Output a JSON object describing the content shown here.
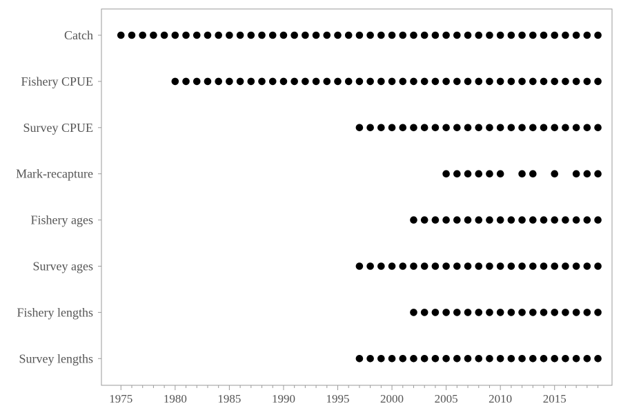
{
  "chart_data": {
    "type": "scatter",
    "title": "",
    "xlabel": "",
    "ylabel": "",
    "xlim": [
      1973.2,
      2020.3
    ],
    "x_ticks": [
      1975,
      1980,
      1985,
      1990,
      1995,
      2000,
      2005,
      2010,
      2015
    ],
    "grid": false,
    "legend": "none",
    "marker_color": "#000000",
    "axis_color": "#9a9a9a",
    "categories": [
      "Catch",
      "Fishery CPUE",
      "Survey CPUE",
      "Mark-recapture",
      "Fishery ages",
      "Survey ages",
      "Fishery lengths",
      "Survey lengths"
    ],
    "series": [
      {
        "category": "Catch",
        "years": [
          1975,
          1976,
          1977,
          1978,
          1979,
          1980,
          1981,
          1982,
          1983,
          1984,
          1985,
          1986,
          1987,
          1988,
          1989,
          1990,
          1991,
          1992,
          1993,
          1994,
          1995,
          1996,
          1997,
          1998,
          1999,
          2000,
          2001,
          2002,
          2003,
          2004,
          2005,
          2006,
          2007,
          2008,
          2009,
          2010,
          2011,
          2012,
          2013,
          2014,
          2015,
          2016,
          2017,
          2018,
          2019
        ]
      },
      {
        "category": "Fishery CPUE",
        "years": [
          1980,
          1981,
          1982,
          1983,
          1984,
          1985,
          1986,
          1987,
          1988,
          1989,
          1990,
          1991,
          1992,
          1993,
          1994,
          1995,
          1996,
          1997,
          1998,
          1999,
          2000,
          2001,
          2002,
          2003,
          2004,
          2005,
          2006,
          2007,
          2008,
          2009,
          2010,
          2011,
          2012,
          2013,
          2014,
          2015,
          2016,
          2017,
          2018,
          2019
        ]
      },
      {
        "category": "Survey CPUE",
        "years": [
          1997,
          1998,
          1999,
          2000,
          2001,
          2002,
          2003,
          2004,
          2005,
          2006,
          2007,
          2008,
          2009,
          2010,
          2011,
          2012,
          2013,
          2014,
          2015,
          2016,
          2017,
          2018,
          2019
        ]
      },
      {
        "category": "Mark-recapture",
        "years": [
          2005,
          2006,
          2007,
          2008,
          2009,
          2010,
          2012,
          2013,
          2015,
          2017,
          2018,
          2019
        ]
      },
      {
        "category": "Fishery ages",
        "years": [
          2002,
          2003,
          2004,
          2005,
          2006,
          2007,
          2008,
          2009,
          2010,
          2011,
          2012,
          2013,
          2014,
          2015,
          2016,
          2017,
          2018,
          2019
        ]
      },
      {
        "category": "Survey ages",
        "years": [
          1997,
          1998,
          1999,
          2000,
          2001,
          2002,
          2003,
          2004,
          2005,
          2006,
          2007,
          2008,
          2009,
          2010,
          2011,
          2012,
          2013,
          2014,
          2015,
          2016,
          2017,
          2018,
          2019
        ]
      },
      {
        "category": "Fishery lengths",
        "years": [
          2002,
          2003,
          2004,
          2005,
          2006,
          2007,
          2008,
          2009,
          2010,
          2011,
          2012,
          2013,
          2014,
          2015,
          2016,
          2017,
          2018,
          2019
        ]
      },
      {
        "category": "Survey lengths",
        "years": [
          1997,
          1998,
          1999,
          2000,
          2001,
          2002,
          2003,
          2004,
          2005,
          2006,
          2007,
          2008,
          2009,
          2010,
          2011,
          2012,
          2013,
          2014,
          2015,
          2016,
          2017,
          2018,
          2019
        ]
      }
    ]
  }
}
